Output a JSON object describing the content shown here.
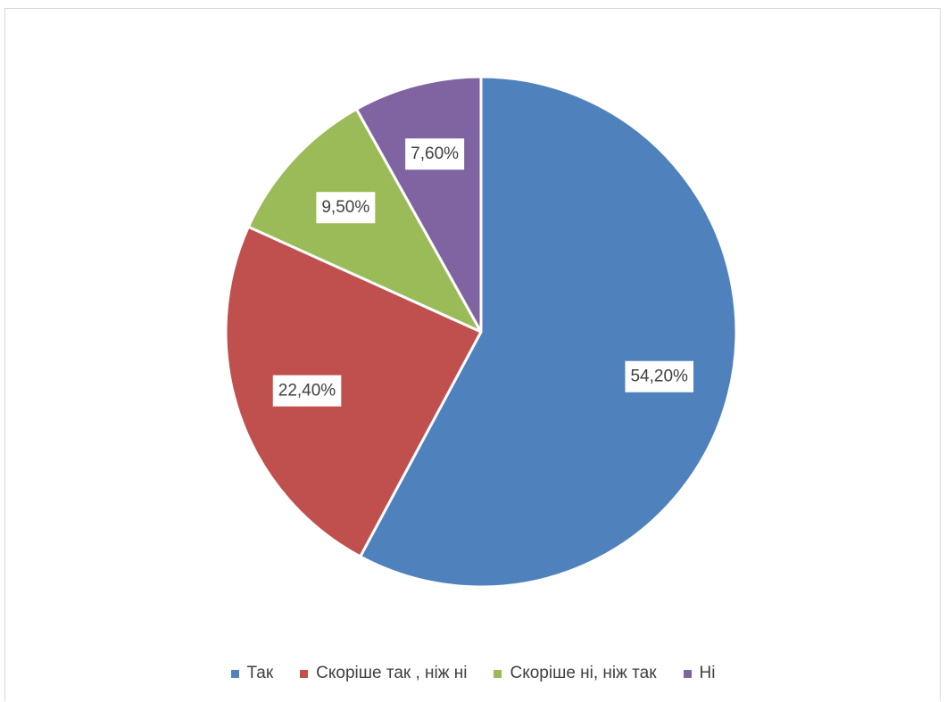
{
  "chart_data": {
    "type": "pie",
    "categories": [
      "Так",
      "Скоріше так , ніж ні",
      "Скоріше ні, ніж так",
      "Ні"
    ],
    "values": [
      54.2,
      22.4,
      9.5,
      7.6
    ],
    "data_labels": [
      "54,20%",
      "22,40%",
      "9,50%",
      "7,60%"
    ],
    "colors": [
      "#4f81bd",
      "#c0504d",
      "#9bbb59",
      "#8064a2"
    ],
    "legend_position": "bottom",
    "start_angle": "12 o'clock, clockwise"
  }
}
